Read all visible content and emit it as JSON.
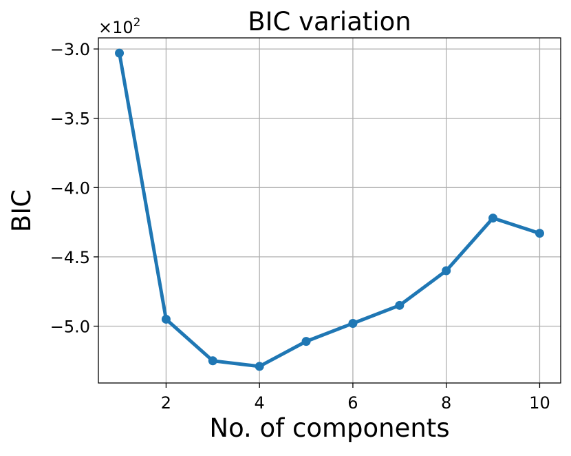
{
  "chart_data": {
    "type": "line",
    "title": "BIC variation",
    "xlabel": "No. of components",
    "ylabel": "BIC",
    "offset_label_prefix": "×10",
    "offset_label_exp": "2",
    "x": [
      1,
      2,
      3,
      4,
      5,
      6,
      7,
      8,
      9,
      10
    ],
    "series": [
      {
        "values": [
          -3.03,
          -4.95,
          -5.25,
          -5.29,
          -5.11,
          -4.98,
          -4.85,
          -4.6,
          -4.22,
          -4.33
        ]
      }
    ],
    "xlim": [
      0.55,
      10.45
    ],
    "ylim": [
      -5.41,
      -2.92
    ],
    "xticks": [
      2,
      4,
      6,
      8,
      10
    ],
    "xtick_labels": [
      "2",
      "4",
      "6",
      "8",
      "10"
    ],
    "yticks": [
      -3.0,
      -3.5,
      -4.0,
      -4.5,
      -5.0
    ],
    "ytick_labels": [
      "−3.0",
      "−3.5",
      "−4.0",
      "−4.5",
      "−5.0"
    ],
    "grid": true,
    "line_color": "#1f77b4",
    "grid_color": "#b0b0b0"
  }
}
